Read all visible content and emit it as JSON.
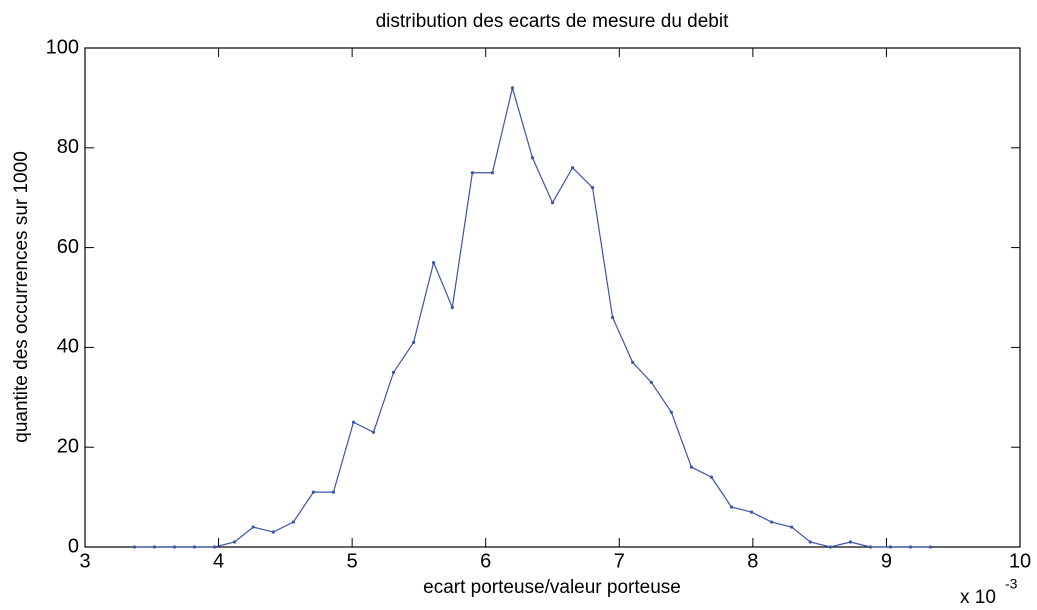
{
  "chart_data": {
    "type": "line",
    "title": "distribution des ecarts de mesure du debit",
    "xlabel": "ecart porteuse/valeur porteuse",
    "ylabel": "quantite des occurrences sur 1000",
    "x_multiplier": {
      "base": "x 10",
      "exponent": "-3"
    },
    "color": "#3a55a8",
    "x": [
      3.37,
      3.52,
      3.67,
      3.82,
      3.97,
      4.12,
      4.26,
      4.41,
      4.56,
      4.71,
      4.86,
      5.01,
      5.16,
      5.31,
      5.46,
      5.61,
      5.75,
      5.9,
      6.05,
      6.2,
      6.35,
      6.5,
      6.65,
      6.8,
      6.95,
      7.1,
      7.24,
      7.39,
      7.54,
      7.69,
      7.84,
      7.99,
      8.14,
      8.29,
      8.43,
      8.58,
      8.73,
      8.88,
      9.03,
      9.18,
      9.33
    ],
    "values": [
      0,
      0,
      0,
      0,
      0,
      1,
      4,
      3,
      5,
      11,
      11,
      25,
      23,
      35,
      41,
      57,
      48,
      75,
      75,
      92,
      78,
      69,
      76,
      72,
      46,
      37,
      33,
      27,
      16,
      14,
      8,
      7,
      5,
      4,
      1,
      0,
      1,
      0,
      0,
      0,
      0
    ],
    "xlim": [
      3,
      10
    ],
    "xticks": [
      3,
      4,
      5,
      6,
      7,
      8,
      9,
      10
    ],
    "ylim": [
      0,
      100
    ],
    "yticks": [
      0,
      20,
      40,
      60,
      80,
      100
    ]
  }
}
